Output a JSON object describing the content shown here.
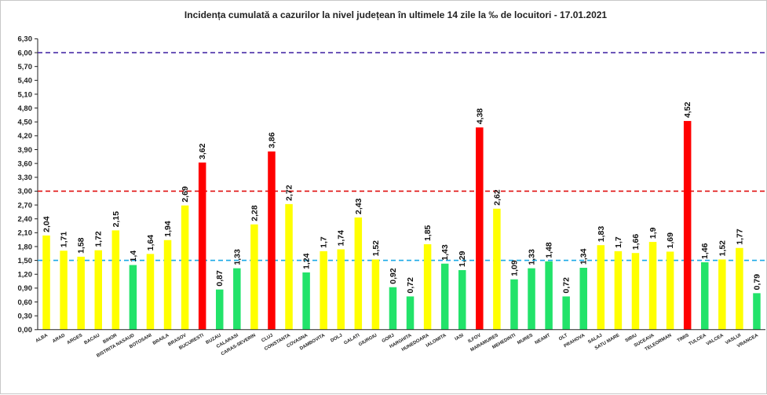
{
  "chart_data": {
    "type": "bar",
    "title": "Incidența cumulată a cazurilor la nivel județean în ultimele 14 zile la ‰ de locuitori - 17.01.2021",
    "xlabel": "",
    "ylabel": "",
    "ylim": [
      0,
      6.3
    ],
    "ytick_step": 0.3,
    "ytick_labels": [
      "0,00",
      "0,30",
      "0,60",
      "0,90",
      "1,20",
      "1,50",
      "1,80",
      "2,10",
      "2,40",
      "2,70",
      "3,00",
      "3,30",
      "3,60",
      "3,90",
      "4,20",
      "4,50",
      "4,80",
      "5,10",
      "5,40",
      "5,70",
      "6,00",
      "6,30"
    ],
    "grid": false,
    "legend": "none",
    "categories": [
      "ALBA",
      "ARAD",
      "ARGES",
      "BACAU",
      "BIHOR",
      "BISTRITA NASAUD",
      "BOTOSANI",
      "BRAILA",
      "BRASOV",
      "BUCURESTI",
      "BUZAU",
      "CALARASI",
      "CARAS-SEVERIN",
      "CLUJ",
      "CONSTANTA",
      "COVASNA",
      "DAMBOVITA",
      "DOLJ",
      "GALATI",
      "GIURGIU",
      "GORJ",
      "HARGHITA",
      "HUNEDOARA",
      "IALOMITA",
      "IASI",
      "ILFOV",
      "MARAMURES",
      "MEHEDINTI",
      "MURES",
      "NEAMT",
      "OLT",
      "PRAHOVA",
      "SALAJ",
      "SATU MARE",
      "SIBIU",
      "SUCEAVA",
      "TELEORMAN",
      "TIMIS",
      "TULCEA",
      "VALCEA",
      "VASLUI",
      "VRANCEA"
    ],
    "values": [
      2.04,
      1.71,
      1.58,
      1.72,
      2.15,
      1.4,
      1.64,
      1.94,
      2.69,
      3.62,
      0.87,
      1.33,
      2.28,
      3.86,
      2.72,
      1.24,
      1.7,
      1.74,
      2.43,
      1.52,
      0.92,
      0.72,
      1.85,
      1.43,
      1.29,
      4.38,
      2.62,
      1.09,
      1.33,
      1.48,
      0.72,
      1.34,
      1.83,
      1.7,
      1.66,
      1.9,
      1.69,
      4.52,
      1.46,
      1.52,
      1.77,
      0.79
    ],
    "value_labels": [
      "2,04",
      "1,71",
      "1,58",
      "1,72",
      "2,15",
      "1,4",
      "1,64",
      "1,94",
      "2,69",
      "3,62",
      "0,87",
      "1,33",
      "2,28",
      "3,86",
      "2,72",
      "1,24",
      "1,7",
      "1,74",
      "2,43",
      "1,52",
      "0,92",
      "0,72",
      "1,85",
      "1,43",
      "1,29",
      "4,38",
      "2,62",
      "1,09",
      "1,33",
      "1,48",
      "0,72",
      "1,34",
      "1,83",
      "1,7",
      "1,66",
      "1,9",
      "1,69",
      "4,52",
      "1,46",
      "1,52",
      "1,77",
      "0,79"
    ],
    "thresholds": [
      {
        "value": 1.5,
        "color": "#1aa9e6"
      },
      {
        "value": 3.0,
        "color": "#e01010"
      },
      {
        "value": 6.0,
        "color": "#4a2ea8"
      }
    ],
    "colors": {
      "green": "#22e36a",
      "yellow": "#ffff00",
      "red": "#ff0000"
    }
  }
}
